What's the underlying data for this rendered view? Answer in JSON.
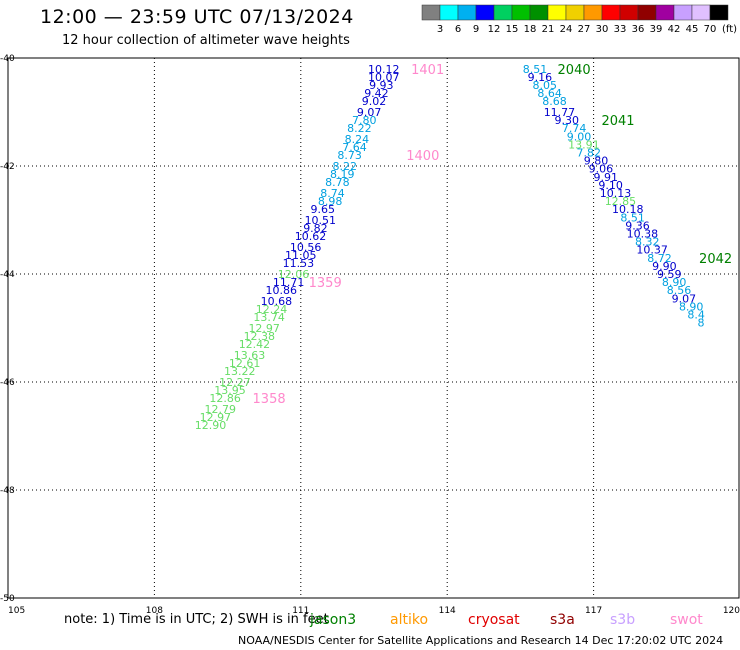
{
  "header": {
    "title": "12:00 — 23:59 UTC 07/13/2024",
    "subtitle": "12 hour collection of altimeter wave heights"
  },
  "colorbar": {
    "labels": [
      "3",
      "6",
      "9",
      "12",
      "15",
      "18",
      "21",
      "24",
      "27",
      "30",
      "33",
      "36",
      "39",
      "42",
      "45",
      "70"
    ],
    "unit": "(ft)",
    "colors": [
      "#808080",
      "#00ffff",
      "#00b0f0",
      "#0000ff",
      "#00d060",
      "#00c000",
      "#009000",
      "#ffff00",
      "#f0d000",
      "#ff9900",
      "#ff0000",
      "#d00000",
      "#900000",
      "#a000a0",
      "#c8a0ff",
      "#e0c0ff",
      "#000000"
    ]
  },
  "note": "note: 1) Time is in UTC; 2) SWH is in feet",
  "credit": "NOAA/NESDIS Center for Satellite Applications and Research   14 Dec 17:20:02 UTC 2024",
  "footer_legend": [
    {
      "label": "jason3",
      "color": "#008000"
    },
    {
      "label": "altiko",
      "color": "#ff9900"
    },
    {
      "label": "cryosat",
      "color": "#e00000"
    },
    {
      "label": "s3a",
      "color": "#900000"
    },
    {
      "label": "s3b",
      "color": "#c8a0ff"
    },
    {
      "label": "swot",
      "color": "#ff88cc"
    }
  ],
  "chart_data": {
    "type": "scatter",
    "xlim": [
      105,
      120
    ],
    "ylim": [
      -50,
      -40
    ],
    "x_ticks": [
      "105",
      "108",
      "111",
      "114",
      "117",
      "120"
    ],
    "y_ticks": [
      "-50",
      "-48",
      "-46",
      "-44",
      "-42",
      "-40"
    ],
    "grid": true,
    "series": [
      {
        "name": "swot",
        "points": [
          {
            "x": 112.7,
            "y": -40.2,
            "label": "10.12",
            "color": "#0000cc"
          },
          {
            "x": 112.7,
            "y": -40.35,
            "label": "10.07",
            "color": "#0000cc"
          },
          {
            "x": 112.65,
            "y": -40.5,
            "label": "9.93",
            "color": "#0000cc"
          },
          {
            "x": 112.55,
            "y": -40.65,
            "label": "9.42",
            "color": "#0000cc"
          },
          {
            "x": 112.5,
            "y": -40.8,
            "label": "9.02",
            "color": "#0000cc"
          },
          {
            "x": 112.4,
            "y": -41.0,
            "label": "9.07",
            "color": "#0000cc"
          },
          {
            "x": 112.3,
            "y": -41.15,
            "label": "7.80",
            "color": "#00a0e0"
          },
          {
            "x": 112.2,
            "y": -41.3,
            "label": "8.22",
            "color": "#00a0e0"
          },
          {
            "x": 112.15,
            "y": -41.5,
            "label": "8.24",
            "color": "#00a0e0"
          },
          {
            "x": 112.1,
            "y": -41.65,
            "label": "7.64",
            "color": "#00a0e0"
          },
          {
            "x": 112.0,
            "y": -41.8,
            "label": "8.73",
            "color": "#00a0e0"
          },
          {
            "x": 111.9,
            "y": -42.0,
            "label": "8.22",
            "color": "#00a0e0"
          },
          {
            "x": 111.85,
            "y": -42.15,
            "label": "8.19",
            "color": "#00a0e0"
          },
          {
            "x": 111.75,
            "y": -42.3,
            "label": "8.78",
            "color": "#00a0e0"
          },
          {
            "x": 111.65,
            "y": -42.5,
            "label": "8.74",
            "color": "#00a0e0"
          },
          {
            "x": 111.6,
            "y": -42.65,
            "label": "8.98",
            "color": "#00a0e0"
          },
          {
            "x": 111.45,
            "y": -42.8,
            "label": "9.65",
            "color": "#0000cc"
          },
          {
            "x": 111.4,
            "y": -43.0,
            "label": "10.51",
            "color": "#0000cc"
          },
          {
            "x": 111.3,
            "y": -43.15,
            "label": "9.82",
            "color": "#0000cc"
          },
          {
            "x": 111.2,
            "y": -43.3,
            "label": "10.62",
            "color": "#0000cc"
          },
          {
            "x": 111.1,
            "y": -43.5,
            "label": "10.56",
            "color": "#0000cc"
          },
          {
            "x": 111.0,
            "y": -43.65,
            "label": "11.05",
            "color": "#0000cc"
          },
          {
            "x": 110.95,
            "y": -43.8,
            "label": "11.53",
            "color": "#0000cc"
          },
          {
            "x": 110.85,
            "y": -44.0,
            "label": "12.06",
            "color": "#66dd66"
          },
          {
            "x": 110.75,
            "y": -44.15,
            "label": "11.71",
            "color": "#0000cc"
          },
          {
            "x": 110.6,
            "y": -44.3,
            "label": "10.86",
            "color": "#0000cc"
          },
          {
            "x": 110.5,
            "y": -44.5,
            "label": "10.68",
            "color": "#0000cc"
          },
          {
            "x": 110.4,
            "y": -44.65,
            "label": "12.24",
            "color": "#66dd66"
          },
          {
            "x": 110.35,
            "y": -44.8,
            "label": "13.74",
            "color": "#66dd66"
          },
          {
            "x": 110.25,
            "y": -45.0,
            "label": "12.97",
            "color": "#66dd66"
          },
          {
            "x": 110.15,
            "y": -45.15,
            "label": "12.38",
            "color": "#66dd66"
          },
          {
            "x": 110.05,
            "y": -45.3,
            "label": "12.42",
            "color": "#66dd66"
          },
          {
            "x": 109.95,
            "y": -45.5,
            "label": "13.63",
            "color": "#66dd66"
          },
          {
            "x": 109.85,
            "y": -45.65,
            "label": "12.61",
            "color": "#66dd66"
          },
          {
            "x": 109.75,
            "y": -45.8,
            "label": "13.22",
            "color": "#66dd66"
          },
          {
            "x": 109.65,
            "y": -46.0,
            "label": "12.27",
            "color": "#66dd66"
          },
          {
            "x": 109.55,
            "y": -46.15,
            "label": "13.95",
            "color": "#66dd66"
          },
          {
            "x": 109.45,
            "y": -46.3,
            "label": "12.86",
            "color": "#66dd66"
          },
          {
            "x": 109.35,
            "y": -46.5,
            "label": "12.79",
            "color": "#66dd66"
          },
          {
            "x": 109.25,
            "y": -46.65,
            "label": "12.97",
            "color": "#66dd66"
          },
          {
            "x": 109.15,
            "y": -46.8,
            "label": "12.90",
            "color": "#66dd66"
          }
        ],
        "time_labels": [
          {
            "x": 113.6,
            "y": -40.2,
            "label": "1401"
          },
          {
            "x": 113.5,
            "y": -41.8,
            "label": "1400"
          },
          {
            "x": 111.5,
            "y": -44.15,
            "label": "1359"
          },
          {
            "x": 110.35,
            "y": -46.3,
            "label": "1358"
          }
        ]
      },
      {
        "name": "jason3",
        "points": [
          {
            "x": 115.8,
            "y": -40.2,
            "label": "8.51",
            "color": "#00a0e0"
          },
          {
            "x": 115.9,
            "y": -40.35,
            "label": "9.16",
            "color": "#0000cc"
          },
          {
            "x": 116.0,
            "y": -40.5,
            "label": "8.05",
            "color": "#00a0e0"
          },
          {
            "x": 116.1,
            "y": -40.65,
            "label": "8.64",
            "color": "#00a0e0"
          },
          {
            "x": 116.2,
            "y": -40.8,
            "label": "8.68",
            "color": "#00a0e0"
          },
          {
            "x": 116.3,
            "y": -41.0,
            "label": "11.77",
            "color": "#0000cc"
          },
          {
            "x": 116.45,
            "y": -41.15,
            "label": "9.30",
            "color": "#0000cc"
          },
          {
            "x": 116.6,
            "y": -41.3,
            "label": "7.74",
            "color": "#00a0e0"
          },
          {
            "x": 116.7,
            "y": -41.45,
            "label": "9.00",
            "color": "#00a0e0"
          },
          {
            "x": 116.8,
            "y": -41.6,
            "label": "13.91",
            "color": "#66dd66"
          },
          {
            "x": 116.9,
            "y": -41.75,
            "label": "7.82",
            "color": "#00a0e0"
          },
          {
            "x": 117.05,
            "y": -41.9,
            "label": "9.80",
            "color": "#0000cc"
          },
          {
            "x": 117.15,
            "y": -42.05,
            "label": "9.06",
            "color": "#0000cc"
          },
          {
            "x": 117.25,
            "y": -42.2,
            "label": "9.91",
            "color": "#0000cc"
          },
          {
            "x": 117.35,
            "y": -42.35,
            "label": "9.10",
            "color": "#0000cc"
          },
          {
            "x": 117.45,
            "y": -42.5,
            "label": "10.13",
            "color": "#0000cc"
          },
          {
            "x": 117.55,
            "y": -42.65,
            "label": "12.85",
            "color": "#66dd66"
          },
          {
            "x": 117.7,
            "y": -42.8,
            "label": "10.18",
            "color": "#0000cc"
          },
          {
            "x": 117.8,
            "y": -42.95,
            "label": "8.51",
            "color": "#00a0e0"
          },
          {
            "x": 117.9,
            "y": -43.1,
            "label": "9.36",
            "color": "#0000cc"
          },
          {
            "x": 118.0,
            "y": -43.25,
            "label": "10.38",
            "color": "#0000cc"
          },
          {
            "x": 118.1,
            "y": -43.4,
            "label": "8.32",
            "color": "#00a0e0"
          },
          {
            "x": 118.2,
            "y": -43.55,
            "label": "10.37",
            "color": "#0000cc"
          },
          {
            "x": 118.35,
            "y": -43.7,
            "label": "8.72",
            "color": "#00a0e0"
          },
          {
            "x": 118.45,
            "y": -43.85,
            "label": "9.90",
            "color": "#0000cc"
          },
          {
            "x": 118.55,
            "y": -44.0,
            "label": "9.59",
            "color": "#0000cc"
          },
          {
            "x": 118.65,
            "y": -44.15,
            "label": "8.90",
            "color": "#00a0e0"
          },
          {
            "x": 118.75,
            "y": -44.3,
            "label": "8.56",
            "color": "#00a0e0"
          },
          {
            "x": 118.85,
            "y": -44.45,
            "label": "9.07",
            "color": "#0000cc"
          },
          {
            "x": 119.0,
            "y": -44.6,
            "label": "8.90",
            "color": "#00a0e0"
          },
          {
            "x": 119.1,
            "y": -44.75,
            "label": "8.4",
            "color": "#00a0e0"
          },
          {
            "x": 119.2,
            "y": -44.9,
            "label": "8",
            "color": "#00a0e0"
          }
        ],
        "time_labels": [
          {
            "x": 116.6,
            "y": -40.2,
            "label": "2040"
          },
          {
            "x": 117.5,
            "y": -41.15,
            "label": "2041"
          },
          {
            "x": 119.5,
            "y": -43.7,
            "label": "2042"
          }
        ]
      }
    ]
  }
}
